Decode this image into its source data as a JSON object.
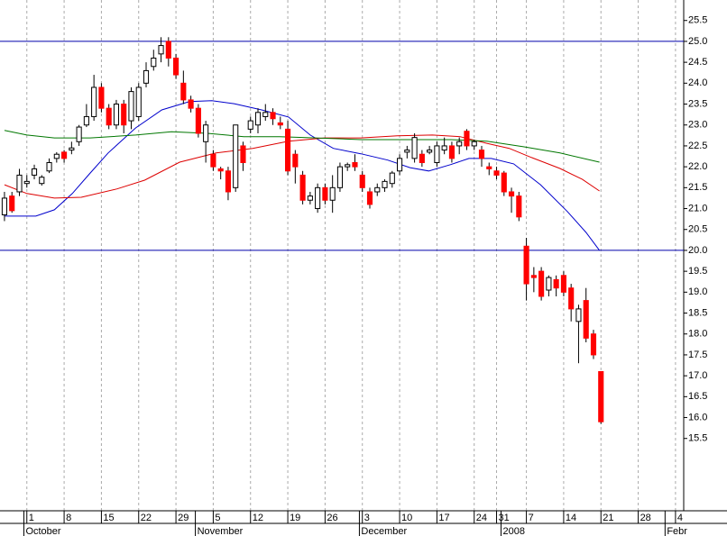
{
  "chart_data": {
    "type": "candlestick",
    "open": [
      20.85,
      21.3,
      21.4,
      21.6,
      21.8,
      21.6,
      21.9,
      22.2,
      22.35,
      22.4,
      22.6,
      23.0,
      23.2,
      23.9,
      23.4,
      23.0,
      23.5,
      23.1,
      23.2,
      24.0,
      24.4,
      24.7,
      25.0,
      24.6,
      24.0,
      23.6,
      23.4,
      22.6,
      22.3,
      21.95,
      21.9,
      21.5,
      22.5,
      22.9,
      23.0,
      23.2,
      23.3,
      23.05,
      22.9,
      22.3,
      21.8,
      21.2,
      21.0,
      21.5,
      21.2,
      21.5,
      22.0,
      22.1,
      21.8,
      21.4,
      21.4,
      21.5,
      21.6,
      21.9,
      22.35,
      22.2,
      22.3,
      22.35,
      22.1,
      22.4,
      22.5,
      22.5,
      22.85,
      22.5,
      22.4,
      22.0,
      21.9,
      21.85,
      21.4,
      21.3,
      20.1,
      19.4,
      19.5,
      19.05,
      19.3,
      19.4,
      19.1,
      18.3,
      18.8,
      18.0,
      17.1
    ],
    "high": [
      21.4,
      21.4,
      21.95,
      21.8,
      22.05,
      21.8,
      22.2,
      22.35,
      22.4,
      22.6,
      23.0,
      23.5,
      24.2,
      24.0,
      23.5,
      23.6,
      23.6,
      23.9,
      24.0,
      24.5,
      24.8,
      25.1,
      25.1,
      24.7,
      24.3,
      23.7,
      23.5,
      23.1,
      22.4,
      22.0,
      22.0,
      23.0,
      22.6,
      23.2,
      23.4,
      23.5,
      23.4,
      23.2,
      23.1,
      22.4,
      21.9,
      21.4,
      21.6,
      21.6,
      21.8,
      22.1,
      22.1,
      22.3,
      21.9,
      21.5,
      21.6,
      21.7,
      21.9,
      22.3,
      22.5,
      22.8,
      22.4,
      22.5,
      22.6,
      22.7,
      22.6,
      22.7,
      22.9,
      22.65,
      22.5,
      22.1,
      22.0,
      21.9,
      21.5,
      21.4,
      20.3,
      19.6,
      19.6,
      19.4,
      19.4,
      19.5,
      19.2,
      18.7,
      19.1,
      18.1,
      17.1
    ],
    "low": [
      20.7,
      20.9,
      21.3,
      21.5,
      21.7,
      21.55,
      21.85,
      22.1,
      22.1,
      22.3,
      22.5,
      22.95,
      23.1,
      23.3,
      22.9,
      22.9,
      22.8,
      22.9,
      23.1,
      23.9,
      24.3,
      24.5,
      24.4,
      24.1,
      23.5,
      23.3,
      22.7,
      22.1,
      21.9,
      21.7,
      21.2,
      21.4,
      21.9,
      22.8,
      22.8,
      23.1,
      23.0,
      22.9,
      21.8,
      21.6,
      21.1,
      21.1,
      20.9,
      21.1,
      20.9,
      21.4,
      21.9,
      21.9,
      21.4,
      21.0,
      21.3,
      21.4,
      21.5,
      21.8,
      22.2,
      22.1,
      22.0,
      22.3,
      22.0,
      22.3,
      22.1,
      22.3,
      22.4,
      22.4,
      22.0,
      21.8,
      21.7,
      21.3,
      20.9,
      20.7,
      18.8,
      19.0,
      18.8,
      18.9,
      18.9,
      18.9,
      18.3,
      17.3,
      17.8,
      17.4,
      15.85
    ],
    "close": [
      21.25,
      20.95,
      21.8,
      21.65,
      21.95,
      21.75,
      22.1,
      22.3,
      22.2,
      22.45,
      22.95,
      23.2,
      23.9,
      23.4,
      23.0,
      23.5,
      23.0,
      23.8,
      23.9,
      24.3,
      24.6,
      24.9,
      24.6,
      24.2,
      23.6,
      23.4,
      22.8,
      23.0,
      22.0,
      21.9,
      21.4,
      23.0,
      22.1,
      23.1,
      23.3,
      23.3,
      23.15,
      23.0,
      21.9,
      22.0,
      21.2,
      21.3,
      21.5,
      21.2,
      21.5,
      22.0,
      22.05,
      22.0,
      21.5,
      21.1,
      21.5,
      21.65,
      21.85,
      22.2,
      22.4,
      22.7,
      22.1,
      22.4,
      22.5,
      22.5,
      22.2,
      22.6,
      22.5,
      22.6,
      22.2,
      21.95,
      21.8,
      21.4,
      21.3,
      20.8,
      19.2,
      19.35,
      18.9,
      19.35,
      19.1,
      19.0,
      18.6,
      18.6,
      17.9,
      17.5,
      15.9
    ],
    "up_color": "#ffffff",
    "down_color": "#ff0000",
    "lines": [
      {
        "color": "#0000cc",
        "x": [
          0,
          4.2,
          6.7,
          9.1,
          11.4,
          13.9,
          17.6,
          21.1,
          24.8,
          27.8,
          30.8,
          34.5,
          38.1,
          41.0,
          44.1,
          47.8,
          51.4,
          54.4,
          56.9,
          59.8,
          62.3,
          65.3,
          68.3,
          71.9,
          75.5,
          78,
          79.8
        ],
        "values": [
          20.82,
          20.82,
          20.97,
          21.36,
          21.83,
          22.33,
          22.93,
          23.36,
          23.56,
          23.58,
          23.51,
          23.36,
          23.19,
          22.76,
          22.44,
          22.31,
          22.16,
          21.98,
          21.9,
          22.05,
          22.2,
          22.2,
          22.07,
          21.57,
          20.93,
          20.43,
          20.0
        ]
      },
      {
        "color": "#dd0000",
        "x": [
          0,
          3,
          6.7,
          10.3,
          15.1,
          18.8,
          23.5,
          28.4,
          33.3,
          38.1,
          42.9,
          47.8,
          52.7,
          57.4,
          61.1,
          64.7,
          67.7,
          70.7,
          74.5,
          77.5,
          79.8
        ],
        "values": [
          21.57,
          21.36,
          21.25,
          21.27,
          21.47,
          21.68,
          22.11,
          22.33,
          22.44,
          22.61,
          22.69,
          22.69,
          22.74,
          22.76,
          22.72,
          22.56,
          22.44,
          22.22,
          21.96,
          21.7,
          21.42
        ]
      },
      {
        "color": "#007700",
        "x": [
          0,
          3,
          6.7,
          11.5,
          17.6,
          22.4,
          27.2,
          32.1,
          36.9,
          41.8,
          47.8,
          53.9,
          59.8,
          64.7,
          69.6,
          74.5,
          79.8
        ],
        "values": [
          22.87,
          22.76,
          22.69,
          22.69,
          22.76,
          22.84,
          22.8,
          22.72,
          22.72,
          22.69,
          22.65,
          22.65,
          22.65,
          22.61,
          22.48,
          22.33,
          22.11
        ]
      }
    ],
    "hlines": {
      "color": "#0000aa",
      "values": [
        25,
        20
      ]
    },
    "xlim": [
      -0.6,
      91.1
    ],
    "ylim": [
      13.77,
      25.99
    ],
    "xticks": [
      {
        "value": 3,
        "label": "1"
      },
      {
        "value": 8,
        "label": "8"
      },
      {
        "value": 13,
        "label": "15"
      },
      {
        "value": 18,
        "label": "22"
      },
      {
        "value": 23,
        "label": "29"
      },
      {
        "value": 28,
        "label": "5"
      },
      {
        "value": 33,
        "label": "12"
      },
      {
        "value": 38,
        "label": "19"
      },
      {
        "value": 43,
        "label": "26"
      },
      {
        "value": 48,
        "label": "3"
      },
      {
        "value": 53,
        "label": "10"
      },
      {
        "value": 58,
        "label": "17"
      },
      {
        "value": 63,
        "label": "24"
      },
      {
        "value": 66,
        "label": "31"
      },
      {
        "value": 70,
        "label": "7"
      },
      {
        "value": 75,
        "label": "14"
      },
      {
        "value": 80,
        "label": "21"
      },
      {
        "value": 85,
        "label": "28"
      },
      {
        "value": 90,
        "label": "4"
      }
    ],
    "month_ticks": [
      {
        "value": 2.6,
        "label": "October"
      },
      {
        "value": 25.6,
        "label": "November"
      },
      {
        "value": 47.6,
        "label": "December"
      },
      {
        "value": 66.6,
        "label": "2008"
      },
      {
        "value": 88.6,
        "label": "Febr"
      }
    ],
    "yticks": [
      15.5,
      {
        "value": 16,
        "label": "16.0"
      },
      16.5,
      {
        "value": 17,
        "label": "17.0"
      },
      17.5,
      {
        "value": 18,
        "label": "18.0"
      },
      18.5,
      {
        "value": 19,
        "label": "19.0"
      },
      19.5,
      {
        "value": 20,
        "label": "20.0"
      },
      20.5,
      {
        "value": 21,
        "label": "21.0"
      },
      21.5,
      {
        "value": 22,
        "label": "22.0"
      },
      22.5,
      {
        "value": 23,
        "label": "23.0"
      },
      23.5,
      {
        "value": 24,
        "label": "24.0"
      },
      24.5,
      {
        "value": 25,
        "label": "25.0"
      },
      25.5
    ],
    "grid": true
  }
}
